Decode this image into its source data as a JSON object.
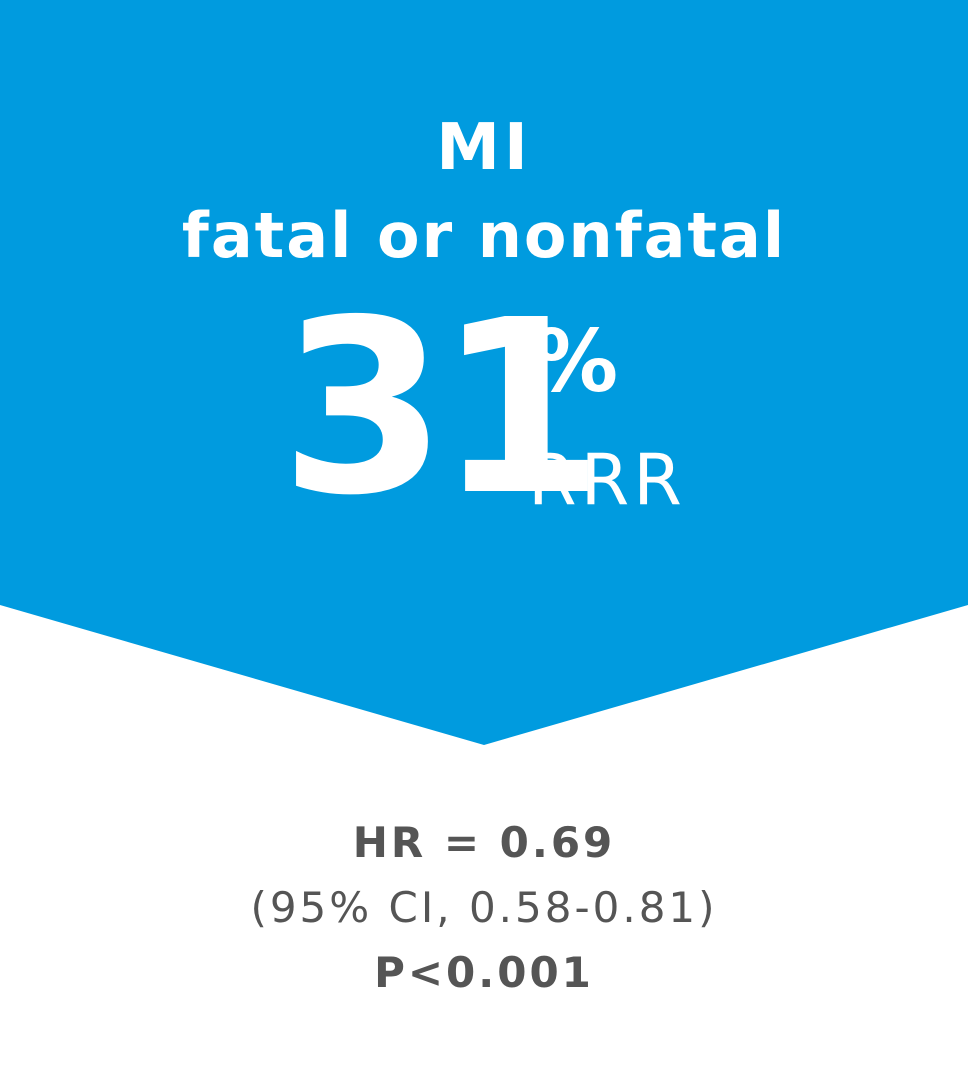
{
  "colors": {
    "banner": "#009BDF",
    "banner_text": "#FFFFFF",
    "stats_text": "#555555",
    "background": "#FFFFFF"
  },
  "banner": {
    "title_line1": "MI",
    "title_line2": "fatal or nonfatal",
    "value": "31",
    "unit": "%",
    "metric": "RRR"
  },
  "stats": {
    "hazard_ratio": "HR = 0.69",
    "confidence_interval": "(95% CI, 0.58-0.81)",
    "p_value": "P<0.001"
  }
}
